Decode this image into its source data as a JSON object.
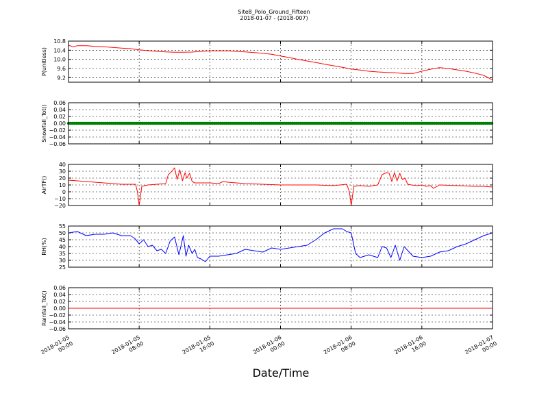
{
  "figure": {
    "title": "Site8_Polo_Ground_Fifteen",
    "subtitle": "2018-01-07 - (2018-007)",
    "xlabel": "Date/Time",
    "x_ticks": [
      "2018-01-05\n00:00",
      "2018-01-05\n08:00",
      "2018-01-05\n16:00",
      "2018-01-06\n00:00",
      "2018-01-06\n08:00",
      "2018-01-06\n16:00",
      "2018-01-07\n00:00"
    ]
  },
  "chart_data": [
    {
      "type": "line",
      "ylabel": "P(unitless)",
      "color": "#ff0000",
      "ylim": [
        9.0,
        10.8
      ],
      "yticks": [
        "9.2",
        "9.6",
        "10.0",
        "10.4",
        "10.8"
      ],
      "ytick_values": [
        9.2,
        9.6,
        10.0,
        10.4,
        10.8
      ],
      "xlim_hours": [
        0,
        48
      ],
      "x_hours": [
        0,
        0.5,
        1,
        2,
        3,
        4,
        5,
        6,
        7,
        8,
        9,
        10,
        11,
        12,
        13,
        14,
        15,
        16,
        17,
        18,
        19,
        20,
        21,
        22,
        23,
        24,
        25,
        26,
        27,
        28,
        29,
        30,
        31,
        32,
        33,
        34,
        35,
        36,
        37,
        38,
        39,
        40,
        41,
        42,
        43,
        44,
        45,
        46,
        47,
        48
      ],
      "values": [
        10.62,
        10.55,
        10.6,
        10.6,
        10.57,
        10.55,
        10.52,
        10.49,
        10.47,
        10.42,
        10.38,
        10.35,
        10.33,
        10.31,
        10.31,
        10.32,
        10.35,
        10.37,
        10.37,
        10.37,
        10.35,
        10.33,
        10.3,
        10.27,
        10.22,
        10.15,
        10.08,
        10.0,
        9.93,
        9.86,
        9.79,
        9.72,
        9.65,
        9.58,
        9.53,
        9.48,
        9.45,
        9.43,
        9.41,
        9.38,
        9.38,
        9.48,
        9.57,
        9.64,
        9.6,
        9.54,
        9.48,
        9.4,
        9.3,
        9.1
      ]
    },
    {
      "type": "line",
      "ylabel": "Snowfall_Tot()",
      "color": "#008000",
      "marker": "dots",
      "ylim": [
        -0.06,
        0.06
      ],
      "yticks": [
        "−0.06",
        "−0.04",
        "−0.02",
        "0.00",
        "0.02",
        "0.04",
        "0.06"
      ],
      "ytick_values": [
        -0.06,
        -0.04,
        -0.02,
        0.0,
        0.02,
        0.04,
        0.06
      ],
      "xlim_hours": [
        0,
        48
      ],
      "x_hours": [
        0,
        48
      ],
      "values": [
        0.0,
        0.0
      ]
    },
    {
      "type": "line",
      "ylabel": "AirTF()",
      "color": "#ff0000",
      "ylim": [
        -20,
        40
      ],
      "yticks": [
        "−20",
        "−10",
        "0",
        "10",
        "20",
        "30",
        "40"
      ],
      "ytick_values": [
        -20,
        -10,
        0,
        10,
        20,
        30,
        40
      ],
      "xlim_hours": [
        0,
        48
      ],
      "x_hours": [
        0,
        2,
        4,
        6,
        7.6,
        7.8,
        8.0,
        8.3,
        9,
        10,
        11,
        11.3,
        11.7,
        12,
        12.3,
        12.6,
        12.9,
        13.2,
        13.4,
        13.7,
        14,
        14.3,
        15,
        16,
        17,
        17.5,
        18,
        19,
        20,
        22,
        24,
        26,
        28,
        30,
        31.5,
        31.8,
        32.0,
        32.3,
        33,
        34,
        35,
        35.5,
        36,
        36.3,
        36.6,
        36.9,
        37.2,
        37.5,
        37.8,
        38.1,
        38.4,
        38.8,
        39.5,
        40,
        40.5,
        41,
        41.3,
        42,
        44,
        46,
        47,
        48
      ],
      "values": [
        17,
        15,
        13,
        11,
        11,
        0,
        -20,
        8,
        10,
        11,
        12,
        25,
        30,
        35,
        18,
        32,
        16,
        28,
        20,
        27,
        15,
        13,
        13,
        13,
        12,
        15,
        14,
        13,
        12,
        11,
        10,
        10,
        10,
        9,
        11,
        0,
        -20,
        8,
        9,
        8,
        10,
        25,
        28,
        27,
        15,
        28,
        16,
        27,
        18,
        20,
        11,
        10,
        9,
        10,
        8,
        9,
        5,
        10,
        9,
        8,
        8,
        7
      ]
    },
    {
      "type": "line",
      "ylabel": "RH(%)",
      "color": "#0000ff",
      "ylim": [
        25,
        55
      ],
      "yticks": [
        "25",
        "30",
        "35",
        "40",
        "45",
        "50",
        "55"
      ],
      "ytick_values": [
        25,
        30,
        35,
        40,
        45,
        50,
        55
      ],
      "xlim_hours": [
        0,
        48
      ],
      "x_hours": [
        0,
        1,
        2,
        3,
        4,
        5,
        6,
        7,
        7.5,
        8,
        8.5,
        9,
        9.5,
        10,
        10.5,
        11,
        11.5,
        12,
        12.5,
        13,
        13.3,
        13.6,
        14,
        14.3,
        14.6,
        15,
        15.5,
        16,
        17,
        18,
        19,
        20,
        21,
        22,
        23,
        24,
        25,
        26,
        27,
        28,
        29,
        30,
        31,
        31.5,
        32,
        32.5,
        33,
        34,
        35,
        35.5,
        36,
        36.5,
        37,
        37.5,
        38,
        39,
        40,
        41,
        42,
        43,
        44,
        45,
        46,
        47,
        48
      ],
      "values": [
        50,
        51,
        48,
        49,
        49,
        50,
        48,
        48,
        46,
        42,
        45,
        40,
        41,
        37,
        38,
        35,
        44,
        47,
        34,
        48,
        33,
        41,
        35,
        38,
        32,
        31,
        29,
        33,
        33,
        34,
        35,
        38,
        37,
        36,
        39,
        38,
        39,
        40,
        41,
        45,
        50,
        53,
        53,
        51,
        50,
        35,
        32,
        34,
        32,
        40,
        39,
        32,
        41,
        30,
        40,
        33,
        32,
        33,
        36,
        37,
        40,
        42,
        45,
        48,
        50
      ]
    },
    {
      "type": "line",
      "ylabel": "Rainfall_Tot()",
      "color": "#ff0000",
      "ylim": [
        -0.06,
        0.06
      ],
      "yticks": [
        "−0.06",
        "−0.04",
        "−0.02",
        "0.00",
        "0.02",
        "0.04",
        "0.06"
      ],
      "ytick_values": [
        -0.06,
        -0.04,
        -0.02,
        0.0,
        0.02,
        0.04,
        0.06
      ],
      "xlim_hours": [
        0,
        48
      ],
      "x_hours": [
        0,
        48
      ],
      "values": [
        0.0,
        0.0
      ]
    }
  ]
}
